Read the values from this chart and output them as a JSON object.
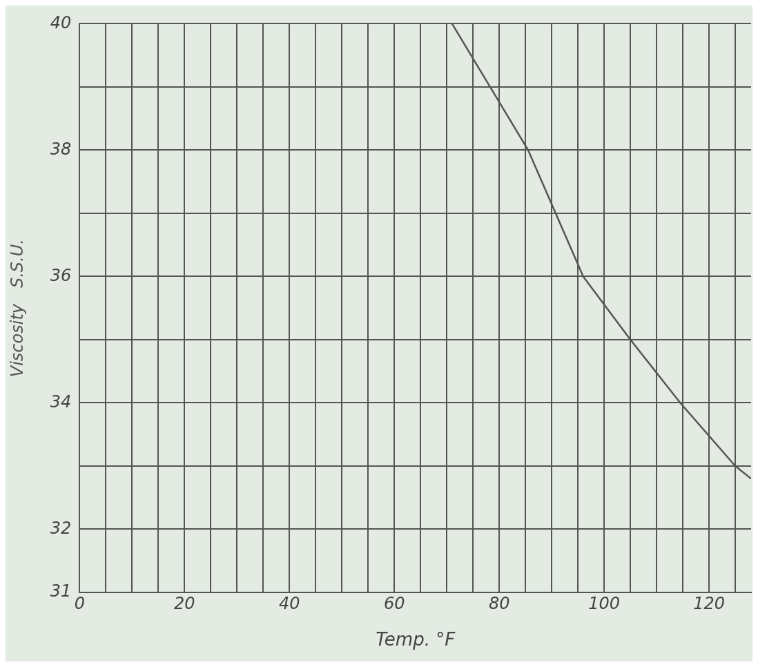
{
  "chart_data": {
    "type": "line",
    "xlabel": "Temp. °F",
    "ylabel": "Viscosity   S.S.U.",
    "xlim": [
      0,
      128
    ],
    "xticks": [
      0,
      {
        "value": 5,
        "label": null
      },
      {
        "value": 10,
        "label": null
      },
      {
        "value": 15,
        "label": null
      },
      20,
      {
        "value": 25,
        "label": null
      },
      {
        "value": 30,
        "label": null
      },
      {
        "value": 35,
        "label": null
      },
      40,
      {
        "value": 45,
        "label": null
      },
      {
        "value": 50,
        "label": null
      },
      {
        "value": 55,
        "label": null
      },
      60,
      {
        "value": 65,
        "label": null
      },
      {
        "value": 70,
        "label": null
      },
      {
        "value": 75,
        "label": null
      },
      80,
      {
        "value": 85,
        "label": null
      },
      {
        "value": 90,
        "label": null
      },
      {
        "value": 95,
        "label": null
      },
      100,
      {
        "value": 105,
        "label": null
      },
      {
        "value": 110,
        "label": null
      },
      {
        "value": 115,
        "label": null
      },
      120,
      {
        "value": 125,
        "label": null
      }
    ],
    "ylim": [
      31,
      40
    ],
    "yticks": [
      31,
      32,
      {
        "value": 33,
        "label": null
      },
      34,
      {
        "value": 35,
        "label": null
      },
      36,
      {
        "value": 37,
        "label": null
      },
      38,
      {
        "value": 39,
        "label": null
      },
      40
    ],
    "grid": true,
    "marker": "none",
    "line_style": "solid",
    "series": [
      {
        "color": "#555555",
        "x": [
          71,
          85.5,
          96,
          105,
          114.5,
          125,
          128
        ],
        "values": [
          40,
          38,
          36,
          35,
          34,
          33,
          32.8
        ]
      }
    ]
  }
}
